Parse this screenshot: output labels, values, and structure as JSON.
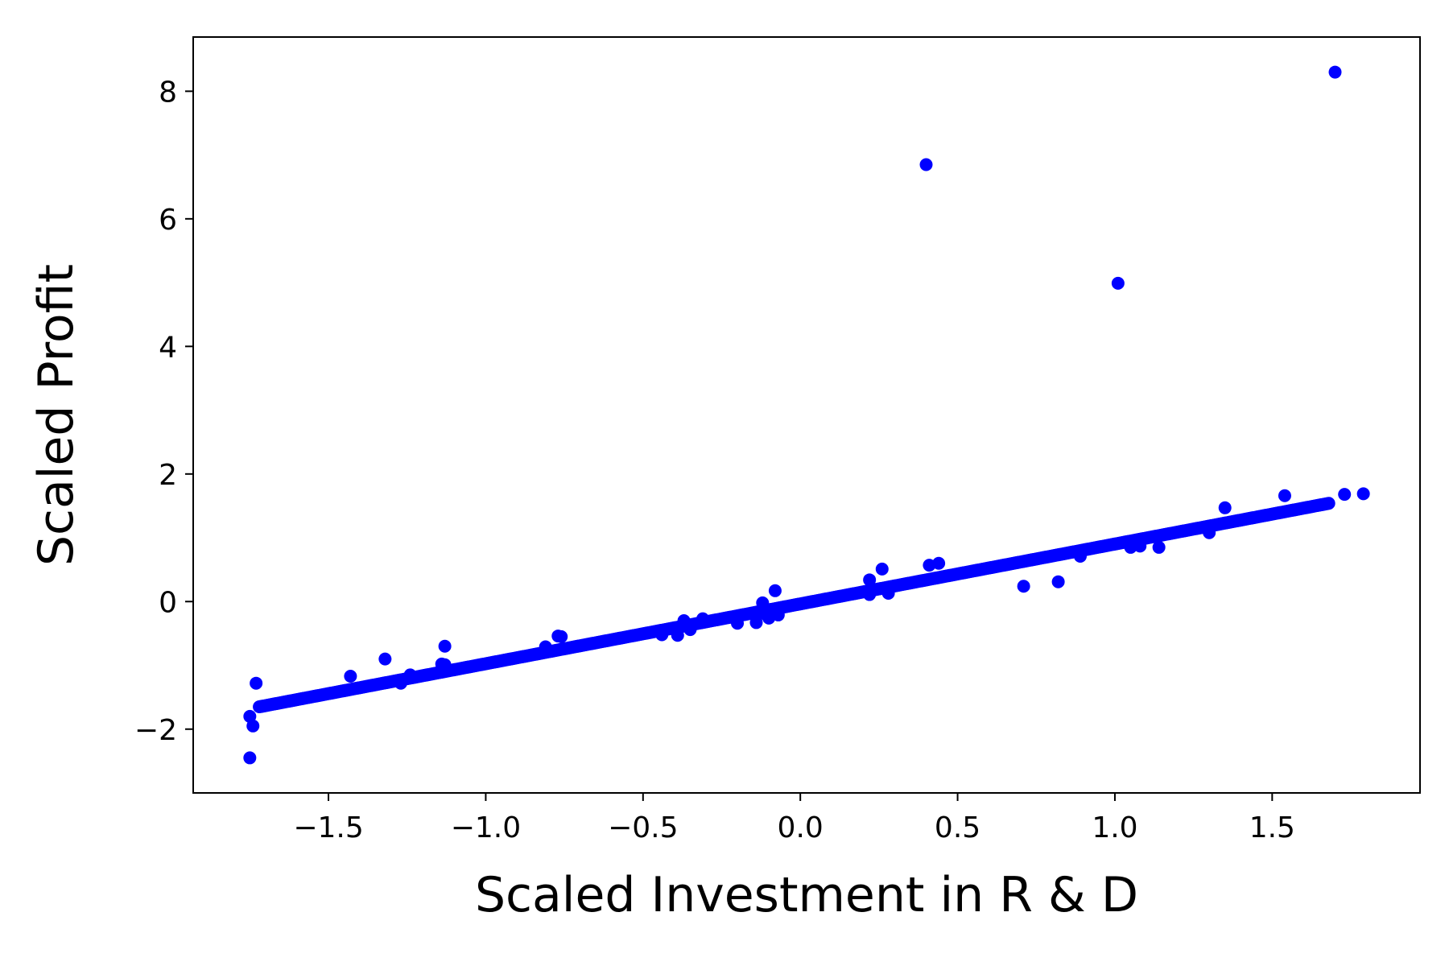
{
  "chart_data": {
    "type": "scatter",
    "title": "",
    "xlabel": "Scaled Investment in R & D",
    "ylabel": "Scaled Profit",
    "xlim": [
      -1.93,
      1.97
    ],
    "ylim": [
      -3.0,
      8.85
    ],
    "xticks": [
      -1.5,
      -1.0,
      -0.5,
      0.0,
      0.5,
      1.0,
      1.5
    ],
    "xtick_labels": [
      "−1.5",
      "−1.0",
      "−0.5",
      "0.0",
      "0.5",
      "1.0",
      "1.5"
    ],
    "yticks": [
      -2,
      0,
      2,
      4,
      6,
      8
    ],
    "ytick_labels": [
      "−2",
      "0",
      "2",
      "4",
      "6",
      "8"
    ],
    "grid": false,
    "marker_color": "#0000ff",
    "series": [
      {
        "points": [
          [
            -1.75,
            -2.45
          ],
          [
            -1.75,
            -1.8
          ],
          [
            -1.74,
            -1.95
          ],
          [
            -1.73,
            -1.28
          ],
          [
            -1.43,
            -1.17
          ],
          [
            -1.32,
            -0.9
          ],
          [
            -1.27,
            -1.28
          ],
          [
            -1.24,
            -1.15
          ],
          [
            -1.14,
            -0.98
          ],
          [
            -1.13,
            -0.7
          ],
          [
            -1.13,
            -0.99
          ],
          [
            -0.81,
            -0.71
          ],
          [
            -0.77,
            -0.54
          ],
          [
            -0.76,
            -0.55
          ],
          [
            -0.44,
            -0.52
          ],
          [
            -0.39,
            -0.53
          ],
          [
            -0.37,
            -0.3
          ],
          [
            -0.35,
            -0.44
          ],
          [
            -0.31,
            -0.27
          ],
          [
            -0.2,
            -0.34
          ],
          [
            -0.14,
            -0.33
          ],
          [
            -0.12,
            -0.02
          ],
          [
            -0.11,
            -0.2
          ],
          [
            -0.1,
            -0.26
          ],
          [
            -0.08,
            0.17
          ],
          [
            -0.07,
            -0.21
          ],
          [
            0.22,
            0.34
          ],
          [
            0.22,
            0.11
          ],
          [
            0.26,
            0.51
          ],
          [
            0.28,
            0.13
          ],
          [
            0.41,
            0.57
          ],
          [
            0.44,
            0.6
          ],
          [
            0.71,
            0.24
          ],
          [
            0.82,
            0.31
          ],
          [
            0.89,
            0.71
          ],
          [
            1.05,
            0.85
          ],
          [
            1.08,
            0.87
          ],
          [
            1.14,
            0.85
          ],
          [
            1.3,
            1.08
          ],
          [
            1.35,
            1.47
          ],
          [
            1.54,
            1.66
          ],
          [
            1.73,
            1.68
          ],
          [
            1.79,
            1.69
          ],
          [
            0.4,
            6.85
          ],
          [
            1.01,
            4.99
          ],
          [
            1.7,
            8.3
          ]
        ],
        "fit_range": [
          -1.72,
          1.68
        ],
        "fit_y": [
          -1.65,
          1.54
        ]
      }
    ]
  }
}
